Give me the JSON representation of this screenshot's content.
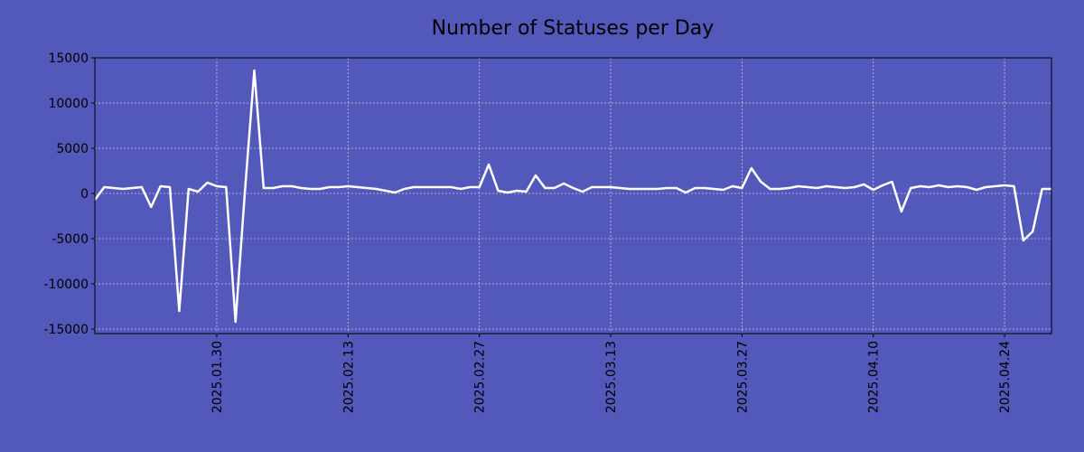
{
  "chart_data": {
    "type": "line",
    "title": "Number of Statuses per Day",
    "x": [
      "2025-01-17",
      "2025-01-18",
      "2025-01-19",
      "2025-01-20",
      "2025-01-21",
      "2025-01-22",
      "2025-01-23",
      "2025-01-24",
      "2025-01-25",
      "2025-01-26",
      "2025-01-27",
      "2025-01-28",
      "2025-01-29",
      "2025-01-30",
      "2025-01-31",
      "2025-02-01",
      "2025-02-02",
      "2025-02-03",
      "2025-02-04",
      "2025-02-05",
      "2025-02-06",
      "2025-02-07",
      "2025-02-08",
      "2025-02-09",
      "2025-02-10",
      "2025-02-11",
      "2025-02-12",
      "2025-02-13",
      "2025-02-14",
      "2025-02-15",
      "2025-02-16",
      "2025-02-17",
      "2025-02-18",
      "2025-02-19",
      "2025-02-20",
      "2025-02-21",
      "2025-02-22",
      "2025-02-23",
      "2025-02-24",
      "2025-02-25",
      "2025-02-26",
      "2025-02-27",
      "2025-02-28",
      "2025-03-01",
      "2025-03-02",
      "2025-03-03",
      "2025-03-04",
      "2025-03-05",
      "2025-03-06",
      "2025-03-07",
      "2025-03-08",
      "2025-03-09",
      "2025-03-10",
      "2025-03-11",
      "2025-03-12",
      "2025-03-13",
      "2025-03-14",
      "2025-03-15",
      "2025-03-16",
      "2025-03-17",
      "2025-03-18",
      "2025-03-19",
      "2025-03-20",
      "2025-03-21",
      "2025-03-22",
      "2025-03-23",
      "2025-03-24",
      "2025-03-25",
      "2025-03-26",
      "2025-03-27",
      "2025-03-28",
      "2025-03-29",
      "2025-03-30",
      "2025-03-31",
      "2025-04-01",
      "2025-04-02",
      "2025-04-03",
      "2025-04-04",
      "2025-04-05",
      "2025-04-06",
      "2025-04-07",
      "2025-04-08",
      "2025-04-09",
      "2025-04-10",
      "2025-04-11",
      "2025-04-12",
      "2025-04-13",
      "2025-04-14",
      "2025-04-15",
      "2025-04-16",
      "2025-04-17",
      "2025-04-18",
      "2025-04-19",
      "2025-04-20",
      "2025-04-21",
      "2025-04-22",
      "2025-04-23",
      "2025-04-24",
      "2025-04-25",
      "2025-04-26",
      "2025-04-27",
      "2025-04-28",
      "2025-04-29"
    ],
    "series": [
      {
        "name": "Statuses",
        "color": "#ffffff",
        "values": [
          -700,
          700,
          600,
          500,
          600,
          700,
          -1500,
          800,
          700,
          -13000,
          500,
          200,
          1200,
          800,
          700,
          -14200,
          200,
          13600,
          600,
          600,
          800,
          800,
          600,
          500,
          500,
          700,
          700,
          800,
          700,
          600,
          500,
          300,
          100,
          500,
          700,
          700,
          700,
          700,
          700,
          500,
          700,
          700,
          3200,
          300,
          100,
          300,
          200,
          2000,
          600,
          600,
          1100,
          600,
          200,
          700,
          700,
          700,
          600,
          500,
          500,
          500,
          500,
          600,
          600,
          100,
          600,
          600,
          500,
          400,
          800,
          600,
          2800,
          1300,
          500,
          500,
          600,
          800,
          700,
          600,
          800,
          700,
          600,
          700,
          1000,
          400,
          900,
          1300,
          -2000,
          600,
          800,
          700,
          900,
          700,
          800,
          700,
          400,
          700,
          800,
          900,
          800,
          -5200,
          -4200,
          500,
          500
        ]
      }
    ],
    "xlim": [
      "2025-01-17",
      "2025-04-29"
    ],
    "xticks": [
      {
        "value": "2025-01-30",
        "label": "2025.01.30"
      },
      {
        "value": "2025-02-13",
        "label": "2025.02.13"
      },
      {
        "value": "2025-02-27",
        "label": "2025.02.27"
      },
      {
        "value": "2025-03-13",
        "label": "2025.03.13"
      },
      {
        "value": "2025-03-27",
        "label": "2025.03.27"
      },
      {
        "value": "2025-04-10",
        "label": "2025.04.10"
      },
      {
        "value": "2025-04-24",
        "label": "2025.04.24"
      }
    ],
    "ylim": [
      -15500,
      15000
    ],
    "yticks": [
      -15000,
      -10000,
      -5000,
      0,
      5000,
      10000,
      15000
    ],
    "grid": true,
    "background": "#5358bb"
  }
}
